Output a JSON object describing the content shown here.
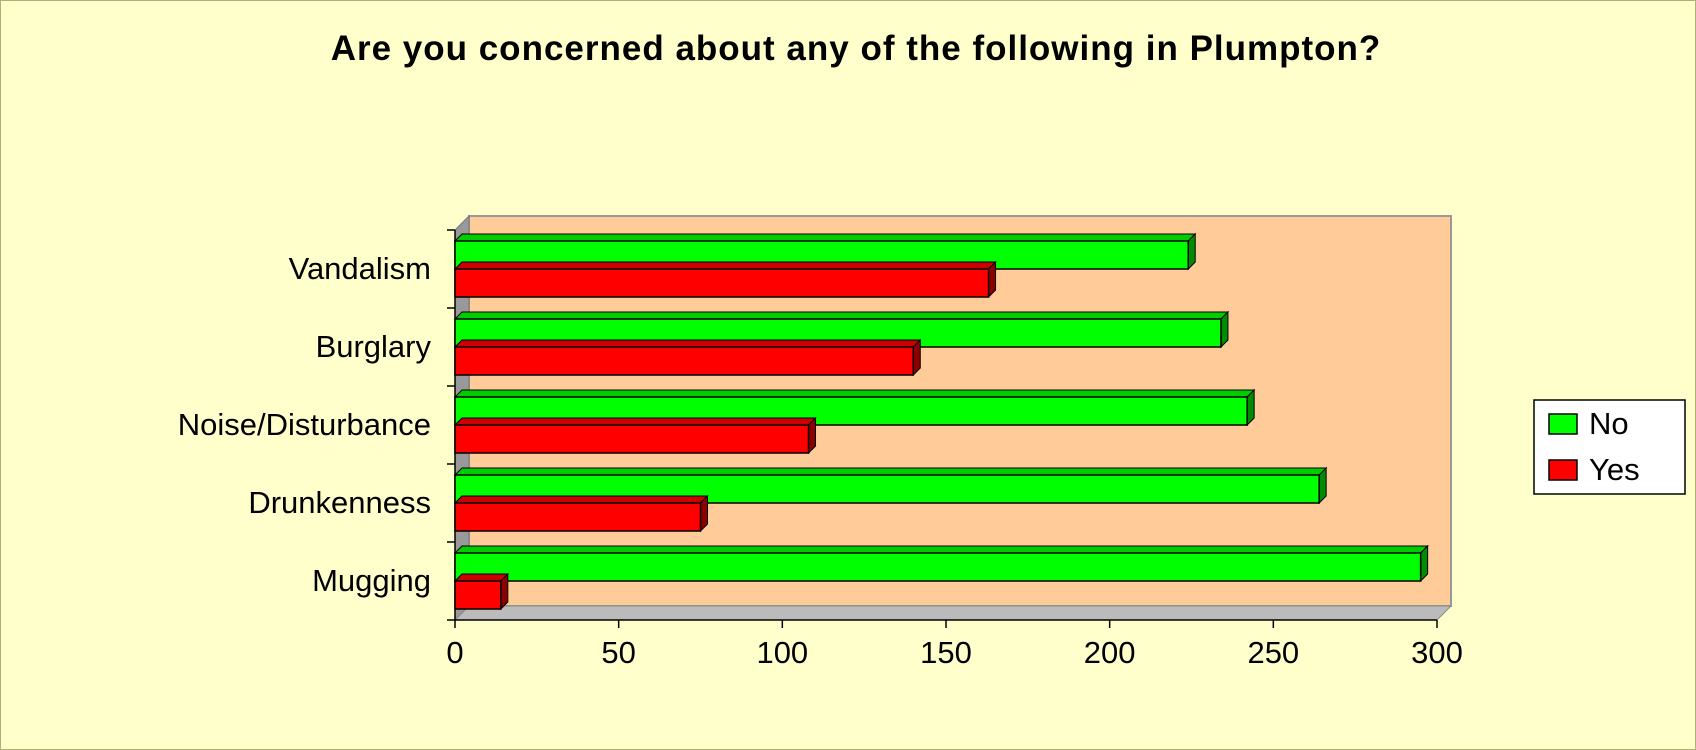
{
  "chart_data": {
    "type": "bar",
    "orientation": "horizontal",
    "title": "Are you concerned about any of the following in Plumpton?",
    "categories": [
      "Vandalism",
      "Burglary",
      "Noise/Disturbance",
      "Drunkenness",
      "Mugging"
    ],
    "series": [
      {
        "name": "No",
        "color": "#00ff00",
        "values": [
          224,
          234,
          242,
          264,
          295
        ]
      },
      {
        "name": "Yes",
        "color": "#ff0000",
        "values": [
          163,
          140,
          108,
          75,
          14
        ]
      }
    ],
    "xlim": [
      0,
      300
    ],
    "xticks": [
      0,
      50,
      100,
      150,
      200,
      250,
      300
    ],
    "legend": "right"
  }
}
